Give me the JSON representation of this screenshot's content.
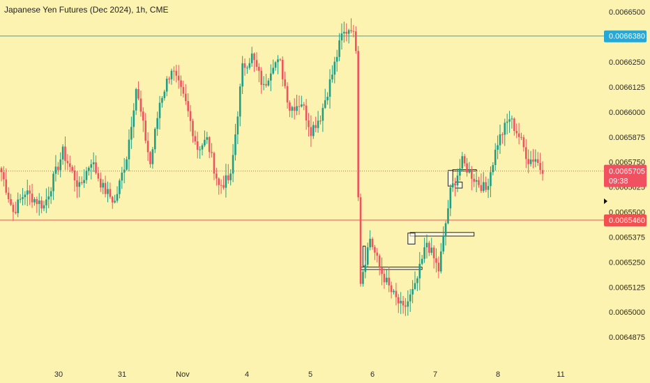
{
  "chart_data": {
    "type": "candlestick",
    "title": "Japanese Yen Futures (Dec 2024), 1h, CME",
    "ylim": [
      0.006475,
      0.006656
    ],
    "y_ticks": [
      "0.0066500",
      "0.0066375",
      "0.0066250",
      "0.0066125",
      "0.0066000",
      "0.0065875",
      "0.0065750",
      "0.0065625",
      "0.0065500",
      "0.0065375",
      "0.0065250",
      "0.0065125",
      "0.0065000",
      "0.0064875"
    ],
    "x_labels": [
      "30",
      "31",
      "Nov",
      "4",
      "5",
      "6",
      "7",
      "8",
      "11"
    ],
    "horizontal_lines": [
      {
        "value": 0.006638,
        "label": "0.0066380",
        "color": "#26a8d6"
      },
      {
        "value": 0.006546,
        "label": "0.0065460",
        "color": "#f05050"
      }
    ],
    "last_price": {
      "value": 0.0065705,
      "label": "0.0065705",
      "countdown": "09:38",
      "color": "#f05060"
    },
    "colors": {
      "up": "#1f9e86",
      "down": "#ef5360",
      "background": "#fcf3b0"
    },
    "anchors": [
      [
        0,
        0.00657
      ],
      [
        5,
        0.00655
      ],
      [
        10,
        0.00656
      ],
      [
        18,
        0.006553
      ],
      [
        26,
        0.00658
      ],
      [
        33,
        0.006562
      ],
      [
        38,
        0.006576
      ],
      [
        43,
        0.006562
      ],
      [
        48,
        0.006555
      ],
      [
        53,
        0.006578
      ],
      [
        57,
        0.006612
      ],
      [
        63,
        0.006574
      ],
      [
        67,
        0.006605
      ],
      [
        72,
        0.006622
      ],
      [
        78,
        0.006604
      ],
      [
        83,
        0.006582
      ],
      [
        87,
        0.006586
      ],
      [
        92,
        0.006563
      ],
      [
        97,
        0.006567
      ],
      [
        102,
        0.006622
      ],
      [
        106,
        0.006628
      ],
      [
        111,
        0.006612
      ],
      [
        115,
        0.006625
      ],
      [
        118,
        0.006624
      ],
      [
        122,
        0.006602
      ],
      [
        127,
        0.006605
      ],
      [
        131,
        0.006591
      ],
      [
        135,
        0.006598
      ],
      [
        140,
        0.006619
      ],
      [
        144,
        0.006638
      ],
      [
        148,
        0.006643
      ],
      [
        150,
        0.006633
      ],
      [
        151,
        0.00656
      ],
      [
        152,
        0.006516
      ],
      [
        156,
        0.006537
      ],
      [
        160,
        0.006522
      ],
      [
        165,
        0.00651
      ],
      [
        170,
        0.006501
      ],
      [
        175,
        0.006512
      ],
      [
        180,
        0.006535
      ],
      [
        185,
        0.006521
      ],
      [
        190,
        0.00656
      ],
      [
        195,
        0.006575
      ],
      [
        200,
        0.006567
      ],
      [
        205,
        0.006561
      ],
      [
        210,
        0.006585
      ],
      [
        215,
        0.006597
      ],
      [
        219,
        0.006588
      ],
      [
        223,
        0.006576
      ],
      [
        226,
        0.006577
      ],
      [
        228,
        0.006572
      ]
    ],
    "zones": [
      {
        "x0": 152,
        "x1": 178,
        "top": 0.0065225,
        "bottom": 0.0065213
      },
      {
        "x0": 173,
        "x1": 200,
        "top": 0.0065398,
        "bottom": 0.006538
      },
      {
        "x0": 172,
        "x1": 175,
        "top": 0.0065395,
        "bottom": 0.006534
      },
      {
        "x0": 153,
        "x1": 154,
        "top": 0.006533,
        "bottom": 0.006523
      },
      {
        "x0": 191,
        "x1": 201,
        "top": 0.0065712,
        "bottom": 0.0065705
      },
      {
        "x0": 192,
        "x1": 195,
        "top": 0.006565,
        "bottom": 0.006562
      },
      {
        "x0": 189,
        "x1": 191,
        "top": 0.0065708,
        "bottom": 0.006563
      }
    ]
  }
}
